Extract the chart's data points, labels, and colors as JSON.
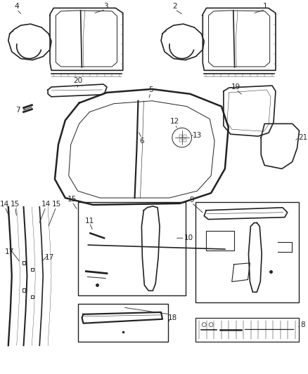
{
  "bg_color": "#ffffff",
  "line_color": "#222222",
  "fig_width": 4.38,
  "fig_height": 5.33,
  "dpi": 100
}
